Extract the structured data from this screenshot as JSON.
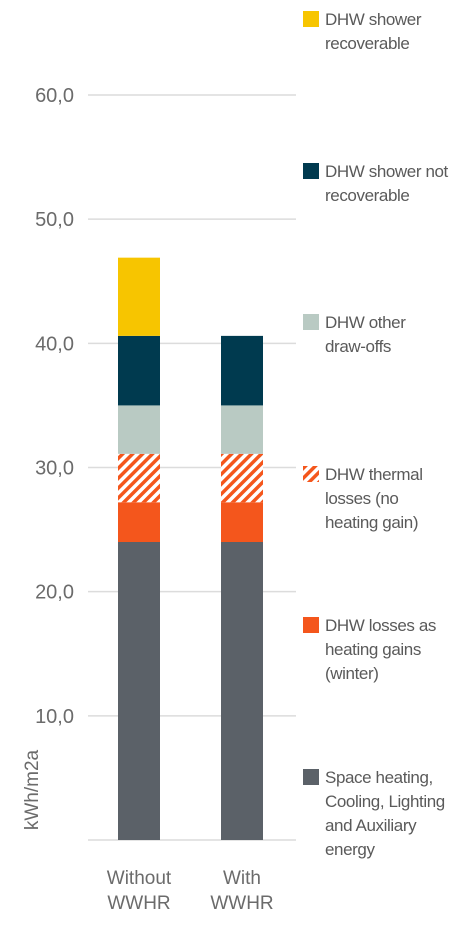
{
  "chart_data": {
    "type": "stacked-bar",
    "y_label": "kWh/m2a",
    "categories": [
      "Without WWHR",
      "With WWHR"
    ],
    "ylim": [
      0,
      60
    ],
    "yticks": [
      {
        "value": 10,
        "label": "10,0"
      },
      {
        "value": 20,
        "label": "20,0"
      },
      {
        "value": 30,
        "label": "30,0"
      },
      {
        "value": 40,
        "label": "40,0"
      },
      {
        "value": 50,
        "label": "50,0"
      },
      {
        "value": 60,
        "label": "60,0"
      }
    ],
    "grid": true,
    "legend": "right",
    "series": [
      {
        "name": "Space heating, Cooling, Lighting and Auxiliary energy",
        "color": "#5b6168",
        "values": [
          24,
          24
        ]
      },
      {
        "name": "DHW losses as heating gains (winter)",
        "color": "#f4561c",
        "values": [
          3.2,
          3.2
        ]
      },
      {
        "name": "DHW thermal losses (no heating gain)",
        "color": "#f4561c",
        "hatch": true,
        "values": [
          3.9,
          3.9
        ]
      },
      {
        "name": "DHW other draw-offs",
        "color": "#b9cac3",
        "values": [
          3.9,
          3.9
        ]
      },
      {
        "name": "DHW shower not recoverable",
        "color": "#003a4f",
        "values": [
          5.6,
          5.6
        ]
      },
      {
        "name": "DHW shower recoverable",
        "color": "#f7c500",
        "values": [
          6.3,
          0
        ]
      }
    ]
  }
}
